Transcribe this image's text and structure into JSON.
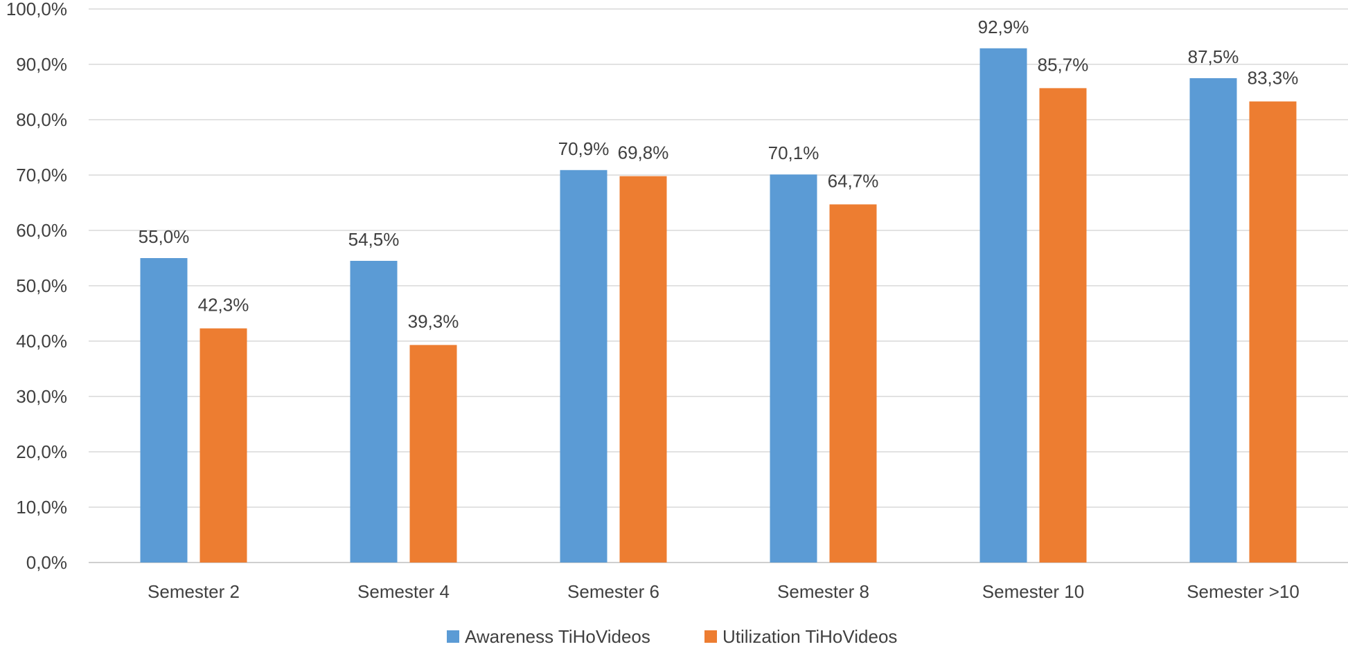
{
  "chart_data": {
    "type": "bar",
    "title": "",
    "xlabel": "",
    "ylabel": "",
    "ylim": [
      0,
      100
    ],
    "ytick_step": 10,
    "ytick_labels": [
      "0,0%",
      "10,0%",
      "20,0%",
      "30,0%",
      "40,0%",
      "50,0%",
      "60,0%",
      "70,0%",
      "80,0%",
      "90,0%",
      "100,0%"
    ],
    "categories": [
      "Semester 2",
      "Semester 4",
      "Semester 6",
      "Semester 8",
      "Semester 10",
      "Semester >10"
    ],
    "series": [
      {
        "name": "Awareness TiHoVideos",
        "color": "#5b9bd5",
        "values": [
          55.0,
          54.5,
          70.9,
          70.1,
          92.9,
          87.5
        ],
        "labels": [
          "55,0%",
          "54,5%",
          "70,9%",
          "70,1%",
          "92,9%",
          "87,5%"
        ]
      },
      {
        "name": "Utilization TiHoVideos",
        "color": "#ed7d31",
        "values": [
          42.3,
          39.3,
          69.8,
          64.7,
          85.7,
          83.3
        ],
        "labels": [
          "42,3%",
          "39,3%",
          "69,8%",
          "64,7%",
          "85,7%",
          "83,3%"
        ]
      }
    ],
    "grid": true,
    "legend_position": "bottom-center"
  }
}
